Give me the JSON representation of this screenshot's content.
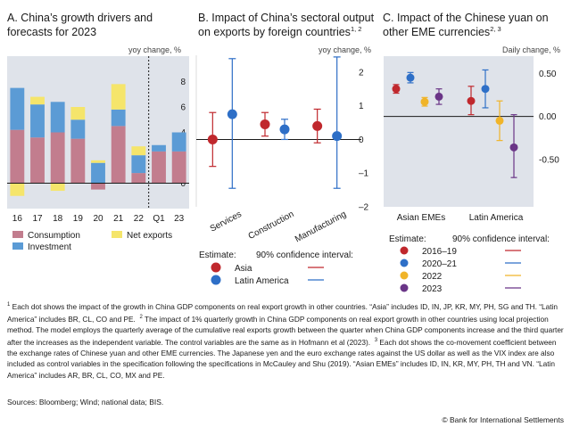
{
  "chart_data": [
    {
      "type": "bar",
      "stacked": true,
      "title": "A. China's growth drivers and forecasts for 2023",
      "ylabel": "yoy change, %",
      "categories": [
        "16",
        "17",
        "18",
        "19",
        "20",
        "21",
        "22",
        "Q1",
        "23"
      ],
      "ylim": [
        -2,
        10
      ],
      "yticks": [
        0,
        2,
        4,
        6,
        8
      ],
      "forecast_divider_after": "22",
      "series": [
        {
          "name": "Consumption",
          "color": "#c27d8e",
          "values": [
            4.2,
            3.6,
            4.0,
            3.5,
            -0.5,
            4.5,
            0.8,
            2.5,
            2.5
          ]
        },
        {
          "name": "Investment",
          "color": "#5b9bd5",
          "values": [
            3.3,
            2.6,
            2.4,
            1.5,
            1.6,
            1.3,
            1.4,
            0.5,
            1.5
          ]
        },
        {
          "name": "Net exports",
          "color": "#f5e56b",
          "values": [
            -1.0,
            0.6,
            -0.6,
            1.0,
            0.2,
            2.0,
            0.7,
            0.0,
            0.0
          ]
        }
      ]
    },
    {
      "type": "scatter",
      "title": "B. Impact of China's sectoral output on exports by foreign countries",
      "title_sup": "1, 2",
      "ylabel": "yoy change, %",
      "categories": [
        "Services",
        "Construction",
        "Manufacturing"
      ],
      "ylim": [
        -2,
        2.5
      ],
      "yticks": [
        -2,
        -1,
        0,
        1,
        2
      ],
      "legend_title": "Estimate:",
      "ci_label": "90% confidence interval:",
      "series": [
        {
          "name": "Asia",
          "color": "#c0282d",
          "values": [
            0.0,
            0.45,
            0.4
          ],
          "ci_low": [
            -0.8,
            0.1,
            -0.1
          ],
          "ci_high": [
            0.8,
            0.8,
            0.9
          ]
        },
        {
          "name": "Latin America",
          "color": "#2e6fc7",
          "values": [
            0.75,
            0.3,
            0.1
          ],
          "ci_low": [
            -1.45,
            0.0,
            -1.45
          ],
          "ci_high": [
            2.4,
            0.6,
            2.45
          ]
        }
      ]
    },
    {
      "type": "scatter",
      "title": "C. Impact of the Chinese yuan on other EME currencies",
      "title_sup": "2, 3",
      "ylabel": "Daily change, %",
      "categories": [
        "Asian EMEs",
        "Latin America"
      ],
      "ylim": [
        -1.05,
        0.7
      ],
      "yticks": [
        -0.5,
        0.0,
        0.5
      ],
      "ytick_labels": [
        "-0.50",
        "0.00",
        "0.50"
      ],
      "legend_title": "Estimate:",
      "ci_label": "90% confidence interval:",
      "series": [
        {
          "name": "2016–19",
          "color": "#c0282d",
          "values": [
            0.32,
            0.18
          ],
          "ci_low": [
            0.27,
            0.02
          ],
          "ci_high": [
            0.37,
            0.35
          ]
        },
        {
          "name": "2020–21",
          "color": "#2e6fc7",
          "values": [
            0.45,
            0.32
          ],
          "ci_low": [
            0.39,
            0.1
          ],
          "ci_high": [
            0.51,
            0.54
          ]
        },
        {
          "name": "2022",
          "color": "#f0b429",
          "values": [
            0.17,
            -0.05
          ],
          "ci_low": [
            0.12,
            -0.28
          ],
          "ci_high": [
            0.22,
            0.18
          ]
        },
        {
          "name": "2023",
          "color": "#6a3587",
          "values": [
            0.23,
            -0.36
          ],
          "ci_low": [
            0.14,
            -0.71
          ],
          "ci_high": [
            0.32,
            0.02
          ]
        }
      ]
    }
  ],
  "notes": {
    "n1_mark": "1",
    "n1": "Each dot shows the impact of the growth in China GDP components on real export growth in other countries. “Asia” includes ID, IN, JP, KR, MY, PH, SG and TH. “Latin America” includes BR, CL, CO and PE.",
    "n2_mark": "2",
    "n2": "The impact of 1% quarterly growth in China GDP components on real export growth in other countries using local projection method. The model employs the quarterly average of the cumulative real exports growth between the quarter when China GDP components increase and the third quarter after the increases as the independent variable. The control variables are the same as in Hofmann et al (2023).",
    "n3_mark": "3",
    "n3": "Each dot shows the co-movement coefficient between the exchange rates of Chinese yuan and other EME currencies. The Japanese yen and the euro exchange rates against the US dollar as well as the VIX index are also included as control variables in the specification following the specifications in McCauley and Shu (2019). “Asian EMEs” includes ID, IN, KR, MY, PH, TH and VN. “Latin America” includes AR, BR, CL, CO, MX and PE."
  },
  "sources": "Sources: Bloomberg; Wind; national data; BIS.",
  "copyright": "© Bank for International Settlements"
}
